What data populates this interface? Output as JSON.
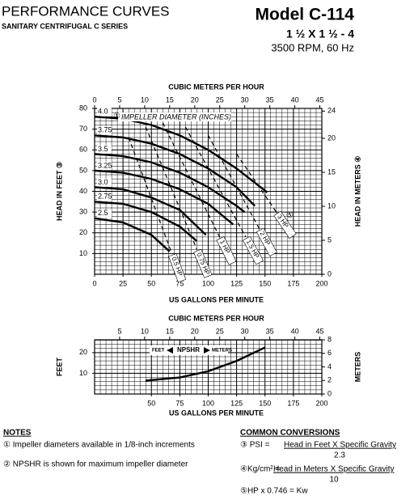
{
  "header": {
    "title": "PERFORMANCE CURVES",
    "subtitle": "SANITARY CENTRIFUGAL  C SERIES",
    "model": "Model C-114",
    "size": "1 ½ X 1 ½ - 4",
    "speed": "3500 RPM, 60 Hz"
  },
  "chart_data": [
    {
      "type": "line",
      "x_label": "US GALLONS PER MINUTE",
      "x2_label": "CUBIC METERS PER HOUR",
      "y_label": "HEAD IN FEET ③",
      "y2_label": "HEAD IN METERS ④",
      "annotation": "IMPELLER DIAMETER (INCHES)",
      "annotation_note": "①",
      "xlim": [
        0,
        200
      ],
      "xticks": [
        0,
        25,
        50,
        75,
        100,
        125,
        150,
        175,
        200
      ],
      "x2lim": [
        0,
        45.4
      ],
      "x2ticks": [
        0,
        5,
        10,
        15,
        20,
        25,
        30,
        35,
        40,
        45
      ],
      "ylim": [
        0,
        80
      ],
      "yticks": [
        10,
        20,
        30,
        40,
        50,
        60,
        70,
        80
      ],
      "y2lim": [
        0,
        24.4
      ],
      "y2ticks": [
        0,
        5,
        10,
        15,
        20,
        24
      ],
      "grid": true,
      "color": "#000000",
      "series": [
        {
          "name": "4.0",
          "x": [
            0,
            25,
            50,
            75,
            100,
            125,
            152
          ],
          "values": [
            76,
            75,
            72,
            67,
            60,
            51,
            39.5
          ]
        },
        {
          "name": "3.75",
          "x": [
            0,
            25,
            50,
            75,
            100,
            125,
            141
          ],
          "values": [
            67,
            66,
            63,
            58,
            51,
            42,
            33
          ]
        },
        {
          "name": "3.5",
          "x": [
            0,
            25,
            50,
            75,
            100,
            125,
            132
          ],
          "values": [
            58,
            57,
            54,
            49,
            42,
            33,
            30
          ]
        },
        {
          "name": "3.25",
          "x": [
            0,
            25,
            50,
            75,
            100,
            122
          ],
          "values": [
            50,
            49,
            46,
            41,
            34,
            24
          ]
        },
        {
          "name": "3.0",
          "x": [
            0,
            25,
            50,
            75,
            98
          ],
          "values": [
            42,
            41,
            37,
            31,
            19
          ]
        },
        {
          "name": "2.75",
          "x": [
            0,
            25,
            50,
            75,
            90
          ],
          "values": [
            35,
            34,
            30,
            23,
            16
          ]
        },
        {
          "name": "2.5",
          "x": [
            0,
            25,
            50,
            66
          ],
          "values": [
            27,
            25,
            19,
            11
          ]
        }
      ],
      "hp_lines": [
        {
          "name": "0.5 HP",
          "x": [
            30,
            68
          ],
          "values": [
            66,
            10
          ]
        },
        {
          "name": "0.75 HP",
          "x": [
            45,
            90
          ],
          "values": [
            71,
            12
          ]
        },
        {
          "name": "1 HP",
          "x": [
            60,
            110
          ],
          "values": [
            73,
            18
          ]
        },
        {
          "name": "1.5 HP",
          "x": [
            80,
            133
          ],
          "values": [
            71,
            18
          ]
        },
        {
          "name": "2 HP",
          "x": [
            100,
            145
          ],
          "values": [
            67,
            22
          ]
        },
        {
          "name": "3 HP",
          "x": [
            125,
            160
          ],
          "values": [
            58,
            30
          ]
        }
      ],
      "hp_note": "⑤"
    },
    {
      "type": "line",
      "x_label": "US GALLONS PER MINUTE",
      "x2_label": "CUBIC METERS PER HOUR",
      "y_label": "FEET",
      "y2_label": "METERS",
      "annotation": "NPSHR",
      "annotation_left": "FEET",
      "annotation_right": "METERS",
      "xlim": [
        0,
        200
      ],
      "xticks": [
        50,
        75,
        100,
        125,
        150,
        175,
        200
      ],
      "x2lim": [
        0,
        45.4
      ],
      "x2ticks": [
        5,
        10,
        15,
        20,
        25,
        30,
        35,
        40,
        45
      ],
      "ylim": [
        0,
        26.2
      ],
      "yticks": [
        10,
        20
      ],
      "y2lim": [
        0,
        8
      ],
      "y2ticks": [
        0,
        2,
        4,
        6,
        8
      ],
      "grid": true,
      "color": "#000000",
      "series": [
        {
          "x": [
            45,
            75,
            100,
            125,
            150
          ],
          "values": [
            6.5,
            8,
            11,
            16,
            22.5
          ]
        }
      ]
    }
  ],
  "notes": {
    "title": "NOTES",
    "items": [
      "① Impeller diameters available in 1/8-inch increments",
      "② NPSHR is shown for maximum impeller diameter"
    ]
  },
  "conversions": {
    "title": "COMMON CONVERSIONS",
    "psi": {
      "label": "③ PSI = ",
      "numerator": "Head in Feet X Specific Gravity",
      "denominator": "2.3"
    },
    "kg": {
      "label": "④Kg/cm² = ",
      "numerator": "Head in Meters X Specific Gravity",
      "denominator": "10"
    },
    "hp": "⑤HP x 0.746 = Kw"
  }
}
